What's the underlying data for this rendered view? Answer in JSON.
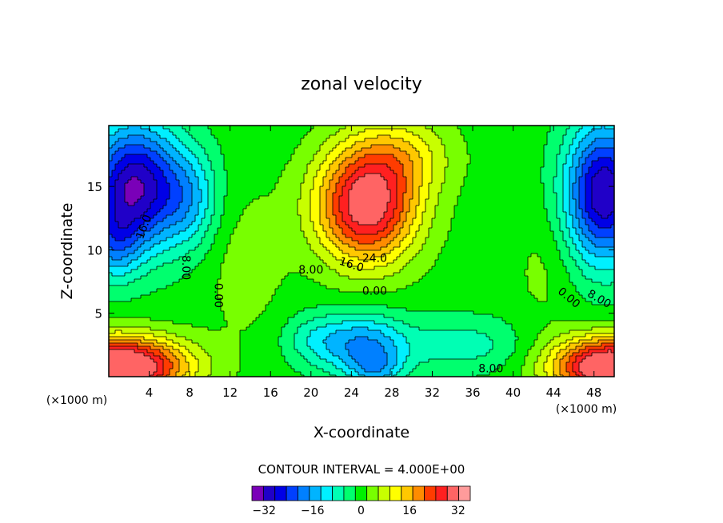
{
  "chart_data": {
    "type": "heatmap",
    "title": "zonal velocity",
    "xlabel": "X-coordinate",
    "ylabel": "Z-coordinate",
    "x_unit_note": "(×1000 m)",
    "x_unit_note_right": "(×1000 m)",
    "xlim": [
      0,
      50
    ],
    "ylim": [
      0,
      19.8
    ],
    "x_ticks": [
      4,
      8,
      12,
      16,
      20,
      24,
      28,
      32,
      36,
      40,
      44,
      48
    ],
    "x_tick_labels": [
      "4",
      "8",
      "12",
      "16",
      "20",
      "24",
      "28",
      "32",
      "36",
      "40",
      "44",
      "48"
    ],
    "y_ticks": [
      5,
      10,
      15
    ],
    "y_tick_labels": [
      "5",
      "10",
      "15"
    ],
    "contour_interval_text": "CONTOUR INTERVAL = 4.000E+00",
    "contour_interval": 4,
    "color_levels": [
      -36,
      -32,
      -28,
      -24,
      -20,
      -16,
      -12,
      -8,
      -4,
      0,
      4,
      8,
      12,
      16,
      20,
      24,
      28,
      32,
      36
    ],
    "colorbar_tick_values": [
      -32,
      -16,
      0,
      16,
      32
    ],
    "colorbar_tick_labels": [
      "−32",
      "−16",
      "0",
      "16",
      "32"
    ],
    "contour_labels": [
      {
        "text": "16.0",
        "x": 3.5,
        "z": 11.8,
        "rotation": -70
      },
      {
        "text": "8.00",
        "x": 7.6,
        "z": 8.6,
        "rotation": 90
      },
      {
        "text": "0.00",
        "x": 10.8,
        "z": 6.4,
        "rotation": 90
      },
      {
        "text": "8.00",
        "x": 20.0,
        "z": 8.4,
        "rotation": 0
      },
      {
        "text": "16.0",
        "x": 24.0,
        "z": 8.8,
        "rotation": 18
      },
      {
        "text": "24.0",
        "x": 26.3,
        "z": 9.3,
        "rotation": 0
      },
      {
        "text": "0.00",
        "x": 26.3,
        "z": 6.7,
        "rotation": 0
      },
      {
        "text": "0.00",
        "x": 45.5,
        "z": 6.2,
        "rotation": 40
      },
      {
        "text": "8.00",
        "x": 48.5,
        "z": 6.1,
        "rotation": 30
      },
      {
        "text": "8.00",
        "x": 37.8,
        "z": 0.6,
        "rotation": 0
      }
    ],
    "features": [
      {
        "x": 25.5,
        "z": 13.5,
        "amp": 34,
        "sx": 5.0,
        "sz": 4.5
      },
      {
        "x": 29.0,
        "z": 17.5,
        "amp": 10,
        "sx": 5.0,
        "sz": 3.0
      },
      {
        "x": 1.0,
        "z": 0.8,
        "amp": 42,
        "sx": 6.5,
        "sz": 2.3
      },
      {
        "x": 49.5,
        "z": 0.8,
        "amp": 40,
        "sx": 5.5,
        "sz": 2.3
      },
      {
        "x": 2.5,
        "z": 15.0,
        "amp": -34,
        "sx": 4.5,
        "sz": 5.0
      },
      {
        "x": 0.5,
        "z": 10.5,
        "amp": -12,
        "sx": 2.5,
        "sz": 3.0
      },
      {
        "x": 49.0,
        "z": 14.5,
        "amp": -34,
        "sx": 3.8,
        "sz": 5.5
      },
      {
        "x": 25.0,
        "z": 2.5,
        "amp": -18,
        "sx": 4.5,
        "sz": 2.5
      },
      {
        "x": 26.5,
        "z": 0.5,
        "amp": -10,
        "sx": 2.5,
        "sz": 1.5
      },
      {
        "x": 35.0,
        "z": 2.5,
        "amp": -8,
        "sx": 6.0,
        "sz": 2.2
      },
      {
        "x": 20.0,
        "z": 3.0,
        "amp": -6,
        "sx": 3.0,
        "sz": 2.0
      },
      {
        "x": 13.5,
        "z": 9.0,
        "amp": 4,
        "sx": 4.0,
        "sz": 6.0
      },
      {
        "x": 43.0,
        "z": 8.5,
        "amp": 3,
        "sx": 3.0,
        "sz": 5.0
      },
      {
        "x": 8.0,
        "z": 14.0,
        "amp": -12,
        "sx": 3.0,
        "sz": 4.0
      }
    ]
  }
}
